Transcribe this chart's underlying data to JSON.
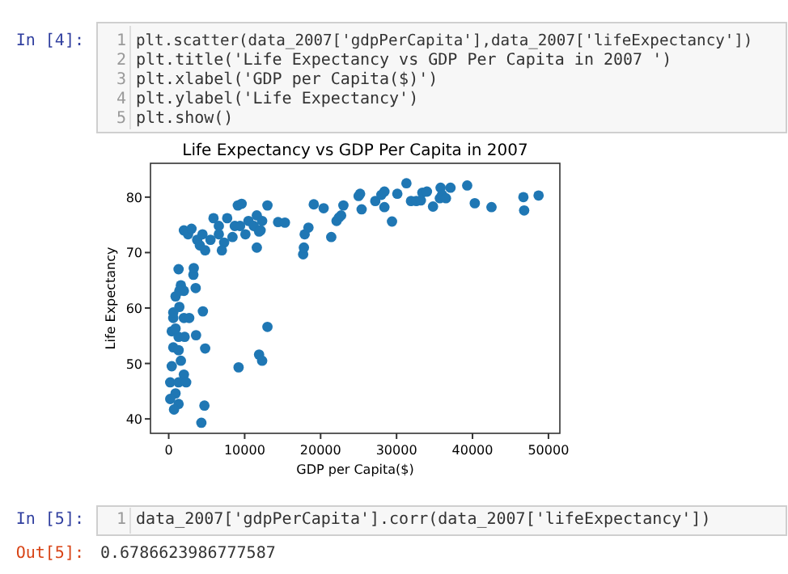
{
  "chart_data": {
    "type": "scatter",
    "title": "Life Expectancy vs GDP Per Capita in 2007",
    "xlabel": "GDP per Capita($)",
    "ylabel": "Life Expectancy",
    "xlim": [
      -2400,
      51500
    ],
    "ylim": [
      37.4,
      86.1
    ],
    "xticks": [
      0,
      10000,
      20000,
      30000,
      40000,
      50000
    ],
    "yticks": [
      40,
      50,
      60,
      70,
      80
    ],
    "marker": "circle",
    "grid": false,
    "annotations": [
      "In [4]:",
      "1",
      "plt.scatter(data_2007['gdpPerCapita'],data_2007['lifeExpectancy'])",
      "2",
      "plt.title('Life Expectancy vs GDP Per Capita in 2007 ')",
      "3",
      "plt.xlabel('GDP per Capita($)')",
      "4",
      "plt.ylabel('Life Expectancy')",
      "5",
      "plt.show()",
      "In [5]:",
      "1",
      "data_2007['gdpPerCapita'].corr(data_2007['lifeExpectancy'])",
      "Out[5]:",
      "0.6786623986777587"
    ],
    "series": [
      {
        "color": "#1f77b4",
        "x": [
          17700,
          17900,
          18400,
          19100,
          20400,
          21400,
          22100,
          22400,
          22700,
          23000,
          25000,
          25200,
          25400,
          27200,
          28000,
          28400,
          28400,
          29400,
          30100,
          31300,
          31900,
          32600,
          33200,
          33400,
          34000,
          34800,
          35700,
          35800,
          36000,
          36500,
          37100,
          39300,
          40300,
          42500,
          46700,
          46800,
          48700,
          2000,
          2550,
          3000,
          3750,
          4100,
          4450,
          4800,
          5500,
          5900,
          6600,
          7300,
          7700,
          8400,
          8700,
          9100,
          9600,
          9400,
          10100,
          10500,
          11200,
          11600,
          11900,
          12300,
          11600,
          12100,
          13000,
          14400,
          15300,
          17800,
          7000,
          3250,
          3550,
          1300,
          1600,
          2000,
          900,
          1400,
          600,
          2000,
          2700,
          4500,
          400,
          1300,
          2100,
          3600,
          13000,
          600,
          1300,
          4800,
          400,
          1600,
          2000,
          200,
          1300,
          2300,
          900,
          200,
          1300,
          700,
          4700,
          4300,
          9200,
          11900,
          12300,
          6600,
          3300,
          600,
          900,
          1400
        ],
        "values": [
          69.7,
          73.3,
          74.5,
          78.7,
          78.0,
          72.8,
          75.7,
          76.3,
          76.7,
          78.5,
          80.2,
          80.6,
          77.8,
          79.3,
          80.4,
          81.0,
          78.2,
          75.6,
          80.6,
          82.5,
          79.3,
          79.3,
          79.4,
          80.8,
          81.0,
          78.3,
          79.8,
          81.7,
          80.4,
          79.8,
          81.7,
          82.1,
          78.9,
          78.2,
          80.0,
          77.6,
          80.3,
          74.0,
          73.3,
          74.3,
          72.3,
          71.3,
          73.3,
          70.4,
          72.3,
          76.2,
          74.8,
          71.8,
          76.2,
          72.8,
          74.8,
          78.5,
          78.8,
          74.8,
          73.3,
          75.7,
          74.8,
          76.7,
          73.8,
          75.7,
          70.9,
          74.0,
          78.5,
          75.5,
          75.4,
          70.9,
          70.4,
          66.0,
          63.6,
          67.0,
          64.1,
          63.1,
          62.1,
          60.2,
          58.2,
          58.2,
          58.2,
          59.4,
          55.8,
          54.8,
          54.8,
          55.1,
          56.6,
          52.9,
          52.4,
          52.7,
          49.5,
          50.5,
          48.0,
          46.6,
          46.6,
          46.6,
          44.6,
          43.6,
          42.7,
          41.7,
          42.4,
          39.3,
          49.3,
          51.6,
          50.5,
          73.3,
          67.2,
          59.2,
          56.3,
          63.1
        ]
      }
    ]
  }
}
